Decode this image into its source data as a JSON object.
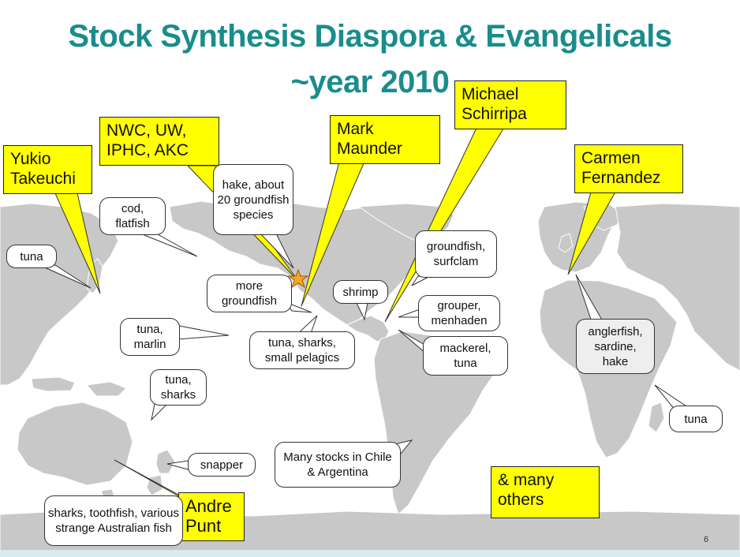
{
  "title": {
    "line1": "Stock Synthesis Diaspora & Evangelicals",
    "line2": "~year 2010"
  },
  "people": {
    "yukio": "Yukio Takeuchi",
    "nwc": "NWC, UW, IPHC, AKC",
    "mark": "Mark Maunder",
    "michael": "Michael Schirripa",
    "carmen": "Carmen Fernandez",
    "andre": "Andre Punt",
    "others": "& many others"
  },
  "species": {
    "tuna_japan": "tuna",
    "cod": "cod, flatfish",
    "hake": "hake, about 20 groundfish species",
    "more_groundfish": "more groundfish",
    "tuna_marlin": "tuna, marlin",
    "tuna_sharks_small": "tuna, sharks, small pelagics",
    "tuna_sharks": "tuna, sharks",
    "shrimp": "shrimp",
    "groundfish_surfclam": "groundfish, surfclam",
    "grouper": "grouper, menhaden",
    "mackerel": "mackerel, tuna",
    "anglerfish": "anglerfish, sardine, hake",
    "tuna_indian": "tuna",
    "chile": "Many stocks in Chile & Argentina",
    "snapper": "snapper",
    "australia": "sharks, toothfish, various strange Australian fish"
  },
  "page_number": "6",
  "colors": {
    "title": "#1a8c8c",
    "highlight": "#ffff00",
    "land": "#c8c8c8",
    "star": "#f5a623"
  }
}
